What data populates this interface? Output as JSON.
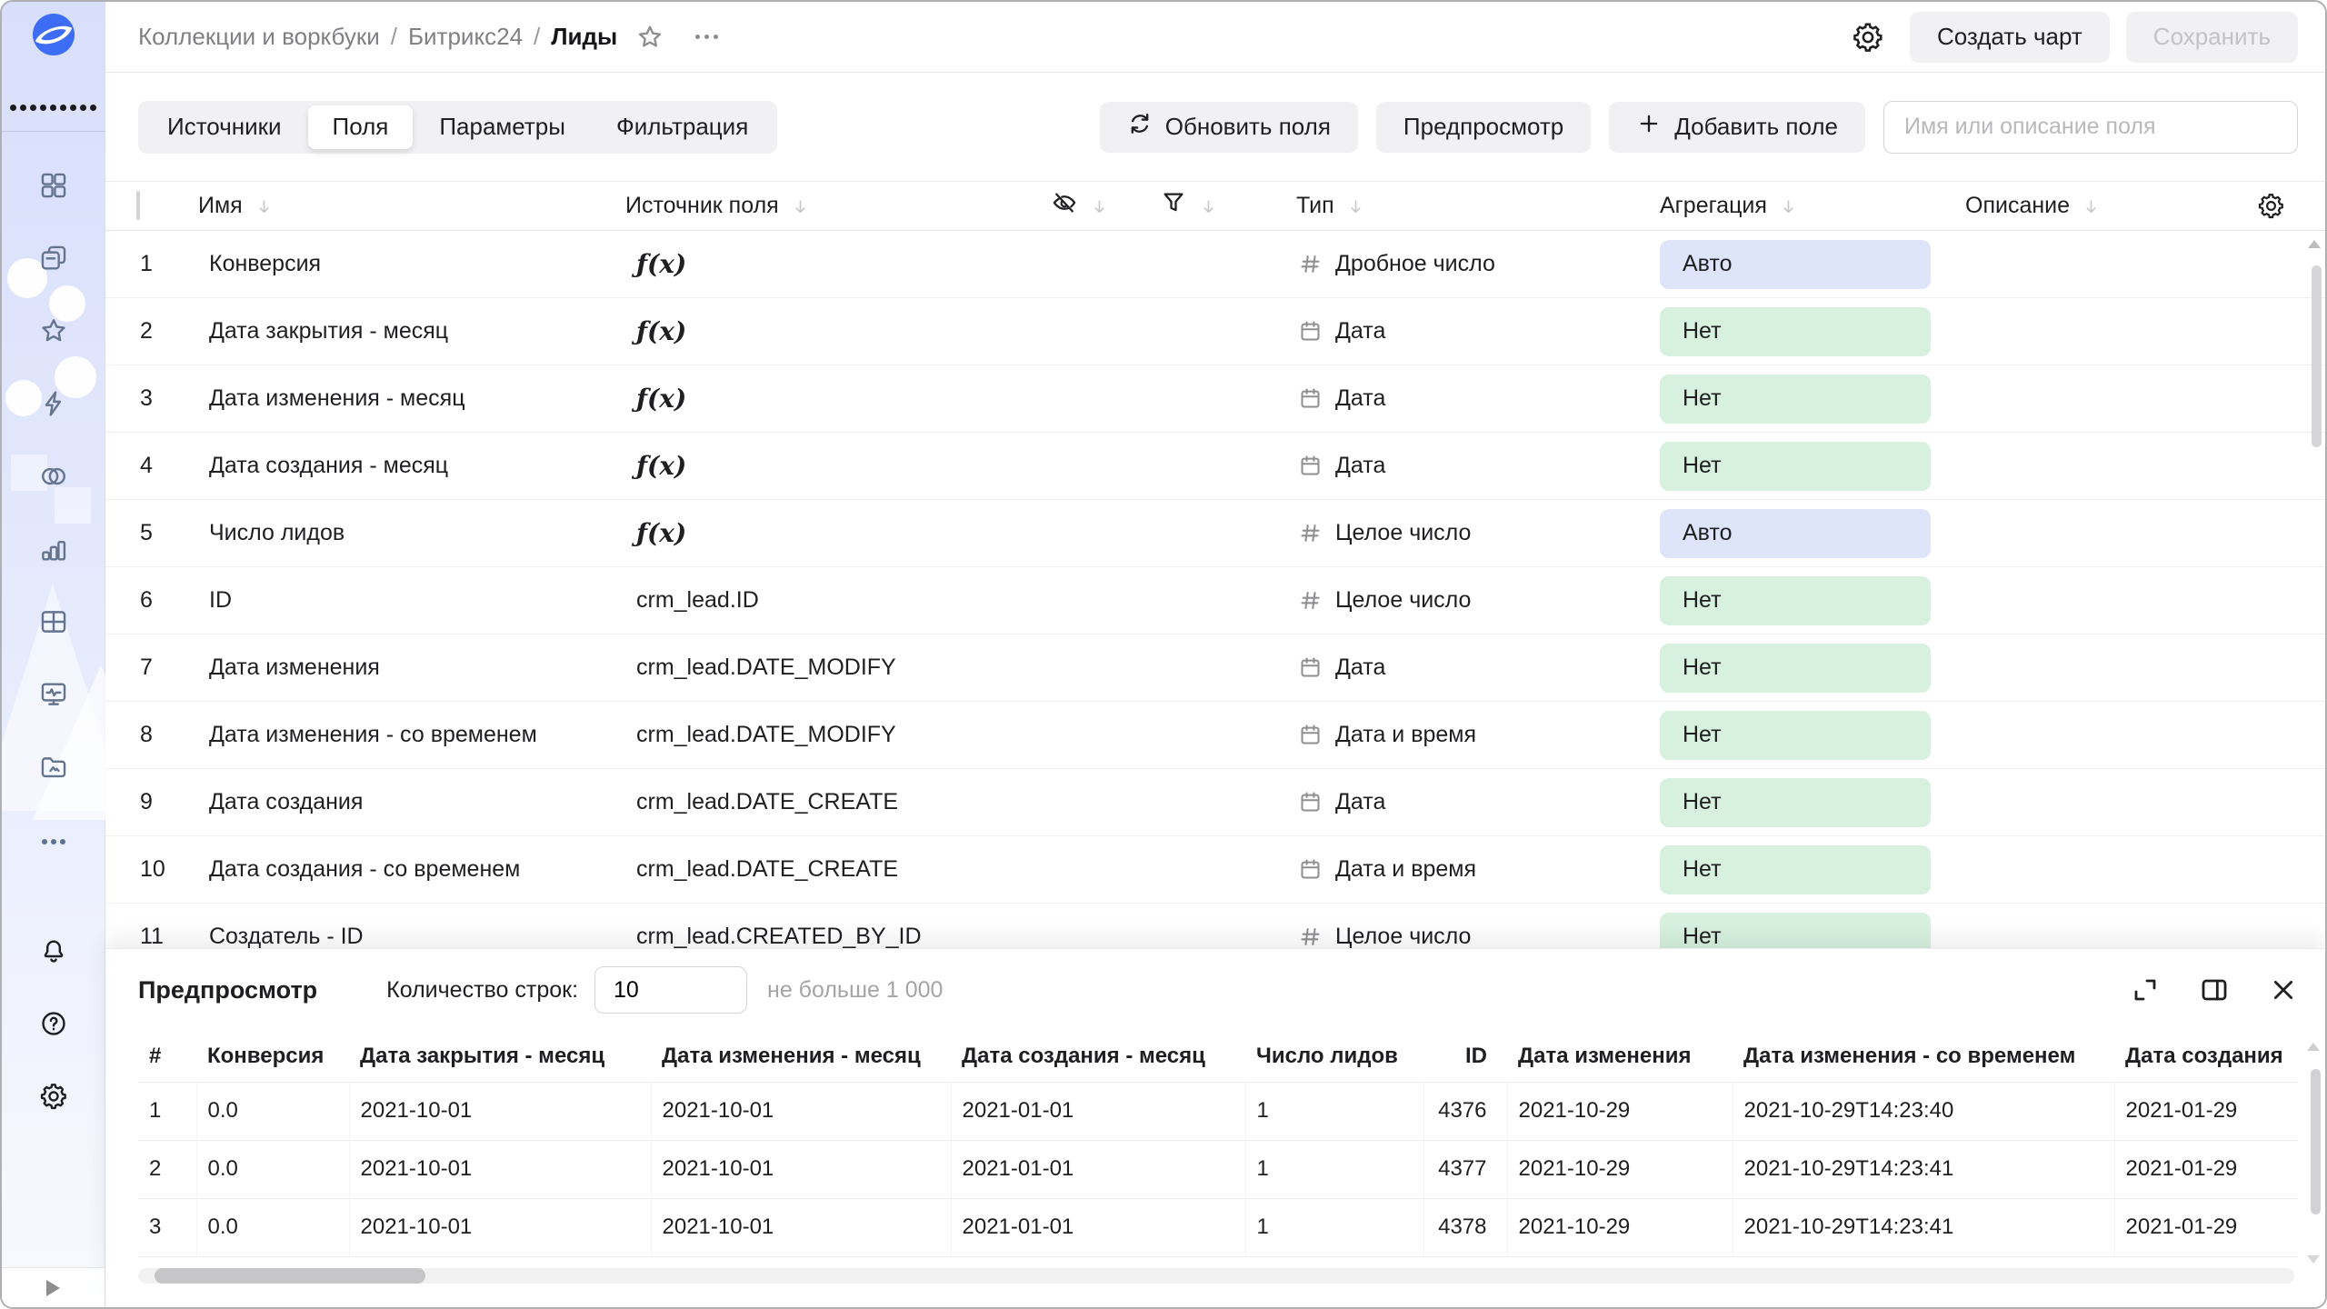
{
  "colors": {
    "accent_blue": "#3d6cf5",
    "aggregation_auto_bg": "#dee5fb",
    "aggregation_none_bg": "#d7f1de"
  },
  "sidebar": {
    "icons": [
      "datalens-logo",
      "apps-grid",
      "collections",
      "workbooks",
      "favorites",
      "connections",
      "datasets",
      "charts",
      "dashboards",
      "monitoring",
      "storage",
      "more",
      "notifications",
      "help",
      "settings",
      "expand"
    ]
  },
  "header": {
    "breadcrumb": {
      "parts": [
        "Коллекции и воркбуки",
        "Битрикс24"
      ],
      "separator": "/",
      "current": "Лиды"
    },
    "create_chart": "Создать чарт",
    "save": "Сохранить"
  },
  "tabs": [
    {
      "label": "Источники",
      "active": false
    },
    {
      "label": "Поля",
      "active": true
    },
    {
      "label": "Параметры",
      "active": false
    },
    {
      "label": "Фильтрация",
      "active": false
    }
  ],
  "toolbar": {
    "refresh": "Обновить поля",
    "preview": "Предпросмотр",
    "add_field": "Добавить поле",
    "search_placeholder": "Имя или описание поля"
  },
  "fields_table": {
    "columns": {
      "name": "Имя",
      "source": "Источник поля",
      "type": "Тип",
      "aggregation": "Агрегация",
      "description": "Описание"
    },
    "rows": [
      {
        "num": "1",
        "name": "Конверсия",
        "source": "ƒ(x)",
        "formula": true,
        "type": "Дробное число",
        "type_icon": "hash-icon",
        "aggregation": "Авто",
        "agg_style": "auto"
      },
      {
        "num": "2",
        "name": "Дата закрытия - месяц",
        "source": "ƒ(x)",
        "formula": true,
        "type": "Дата",
        "type_icon": "calendar-icon",
        "aggregation": "Нет",
        "agg_style": "none"
      },
      {
        "num": "3",
        "name": "Дата изменения - месяц",
        "source": "ƒ(x)",
        "formula": true,
        "type": "Дата",
        "type_icon": "calendar-icon",
        "aggregation": "Нет",
        "agg_style": "none"
      },
      {
        "num": "4",
        "name": "Дата создания - месяц",
        "source": "ƒ(x)",
        "formula": true,
        "type": "Дата",
        "type_icon": "calendar-icon",
        "aggregation": "Нет",
        "agg_style": "none"
      },
      {
        "num": "5",
        "name": "Число лидов",
        "source": "ƒ(x)",
        "formula": true,
        "type": "Целое число",
        "type_icon": "hash-icon",
        "aggregation": "Авто",
        "agg_style": "auto"
      },
      {
        "num": "6",
        "name": "ID",
        "source": "crm_lead.ID",
        "formula": false,
        "type": "Целое число",
        "type_icon": "hash-icon",
        "aggregation": "Нет",
        "agg_style": "none"
      },
      {
        "num": "7",
        "name": "Дата изменения",
        "source": "crm_lead.DATE_MODIFY",
        "formula": false,
        "type": "Дата",
        "type_icon": "calendar-icon",
        "aggregation": "Нет",
        "agg_style": "none"
      },
      {
        "num": "8",
        "name": "Дата изменения - со временем",
        "source": "crm_lead.DATE_MODIFY",
        "formula": false,
        "type": "Дата и время",
        "type_icon": "calendar-icon",
        "aggregation": "Нет",
        "agg_style": "none"
      },
      {
        "num": "9",
        "name": "Дата создания",
        "source": "crm_lead.DATE_CREATE",
        "formula": false,
        "type": "Дата",
        "type_icon": "calendar-icon",
        "aggregation": "Нет",
        "agg_style": "none"
      },
      {
        "num": "10",
        "name": "Дата создания - со временем",
        "source": "crm_lead.DATE_CREATE",
        "formula": false,
        "type": "Дата и время",
        "type_icon": "calendar-icon",
        "aggregation": "Нет",
        "agg_style": "none"
      },
      {
        "num": "11",
        "name": "Создатель - ID",
        "source": "crm_lead.CREATED_BY_ID",
        "formula": false,
        "type": "Целое число",
        "type_icon": "hash-icon",
        "aggregation": "Нет",
        "agg_style": "none"
      }
    ]
  },
  "preview": {
    "title": "Предпросмотр",
    "row_count_label": "Количество строк:",
    "row_count_value": "10",
    "row_count_hint": "не больше 1 000",
    "table": {
      "columns": [
        "#",
        "Конверсия",
        "Дата закрытия - месяц",
        "Дата изменения - месяц",
        "Дата создания - месяц",
        "Число лидов",
        "ID",
        "Дата изменения",
        "Дата изменения - со временем",
        "Дата создания"
      ],
      "rows": [
        [
          "1",
          "0.0",
          "2021-10-01",
          "2021-10-01",
          "2021-01-01",
          "1",
          "4376",
          "2021-10-29",
          "2021-10-29T14:23:40",
          "2021-01-29"
        ],
        [
          "2",
          "0.0",
          "2021-10-01",
          "2021-10-01",
          "2021-01-01",
          "1",
          "4377",
          "2021-10-29",
          "2021-10-29T14:23:41",
          "2021-01-29"
        ],
        [
          "3",
          "0.0",
          "2021-10-01",
          "2021-10-01",
          "2021-01-01",
          "1",
          "4378",
          "2021-10-29",
          "2021-10-29T14:23:41",
          "2021-01-29"
        ]
      ]
    }
  }
}
